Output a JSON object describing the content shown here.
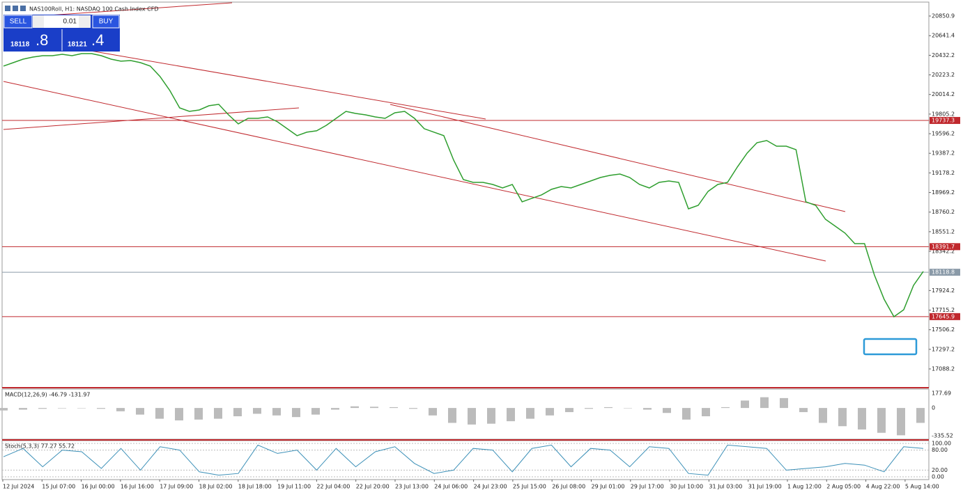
{
  "header": {
    "title": "NAS100Roll, H1:  NASDAQ 100 Cash Index CFD"
  },
  "trade_panel": {
    "sell": "SELL",
    "buy": "BUY",
    "volume": "0.01",
    "sell_price_big": "18118",
    "sell_price_small": ".8",
    "buy_price_big": "18121",
    "buy_price_small": ".4"
  },
  "chart": {
    "price_ticks": [
      20850.9,
      20641.4,
      20432.2,
      20223.2,
      20014.2,
      19805.2,
      19596.2,
      19387.2,
      19178.2,
      18969.2,
      18760.2,
      18551.2,
      18342.2,
      17924.2,
      17715.2,
      17506.2,
      17297.2,
      17088.2
    ],
    "levels": [
      {
        "value": 19737.3,
        "color": "#c0282d"
      },
      {
        "value": 18391.7,
        "color": "#c0282d"
      },
      {
        "value": 18118.8,
        "color": "#8a9aa8"
      },
      {
        "value": 17645.9,
        "color": "#c0282d"
      }
    ],
    "time_labels": [
      "12 Jul 2024",
      "15 Jul 07:00",
      "16 Jul 00:00",
      "16 Jul 16:00",
      "17 Jul 09:00",
      "18 Jul 02:00",
      "18 Jul 18:00",
      "19 Jul 11:00",
      "22 Jul 04:00",
      "22 Jul 20:00",
      "23 Jul 13:00",
      "24 Jul 06:00",
      "24 Jul 23:00",
      "25 Jul 15:00",
      "26 Jul 08:00",
      "29 Jul 01:00",
      "29 Jul 17:00",
      "30 Jul 10:00",
      "31 Jul 03:00",
      "31 Jul 19:00",
      "1 Aug 12:00",
      "2 Aug 05:00",
      "4 Aug 22:00",
      "5 Aug 14:00"
    ],
    "close": [
      20317,
      20354,
      20391,
      20413,
      20428,
      20428,
      20443,
      20428,
      20450,
      20450,
      20428,
      20391,
      20369,
      20376,
      20354,
      20317,
      20205,
      20057,
      19871,
      19834,
      19849,
      19894,
      19909,
      19797,
      19701,
      19760,
      19760,
      19775,
      19723,
      19649,
      19575,
      19612,
      19627,
      19686,
      19760,
      19834,
      19812,
      19797,
      19775,
      19760,
      19819,
      19834,
      19760,
      19649,
      19612,
      19575,
      19315,
      19107,
      19077,
      19077,
      19055,
      19018,
      19055,
      18870,
      18907,
      18944,
      19003,
      19033,
      19018,
      19055,
      19092,
      19129,
      19152,
      19166,
      19129,
      19055,
      19018,
      19077,
      19092,
      19077,
      18795,
      18832,
      18981,
      19055,
      19077,
      19241,
      19389,
      19500,
      19523,
      19463,
      19463,
      19426,
      18870,
      18832,
      18684,
      18610,
      18536,
      18424,
      18424,
      18090,
      17831,
      17645,
      17719,
      17979,
      18128
    ],
    "color": "#2e9e2e"
  },
  "macd": {
    "title": "MACD(12,26,9) -46.79 -131.97",
    "ticks": [
      177.69,
      0.0,
      -335.52
    ],
    "histogram": [
      -30,
      -20,
      -10,
      -5,
      0,
      -10,
      -40,
      -80,
      -130,
      -150,
      -140,
      -130,
      -100,
      -70,
      -90,
      -110,
      -80,
      -20,
      20,
      15,
      10,
      -10,
      -90,
      -180,
      -200,
      -190,
      -160,
      -130,
      -90,
      -50,
      -10,
      10,
      0,
      -20,
      -60,
      -140,
      -100,
      10,
      90,
      130,
      120,
      -50,
      -180,
      -220,
      -260,
      -300,
      -330,
      -180
    ]
  },
  "stoch": {
    "title": "Stoch(5,3,3) 77.27 55.72",
    "ticks": [
      {
        "value": 100,
        "label": "100.00"
      },
      {
        "value": 80,
        "label": "80.00"
      },
      {
        "value": 20,
        "label": "20.00"
      },
      {
        "value": 0,
        "label": "0.00"
      }
    ],
    "k": [
      60,
      85,
      30,
      80,
      75,
      25,
      85,
      20,
      90,
      80,
      15,
      5,
      10,
      95,
      70,
      80,
      20,
      85,
      30,
      75,
      90,
      40,
      10,
      20,
      85,
      80,
      15,
      85,
      95,
      30,
      85,
      80,
      30,
      90,
      85,
      10,
      5,
      95,
      90,
      85,
      20,
      25,
      30,
      40,
      35,
      15,
      90,
      85
    ],
    "color": "#3a8fb7"
  }
}
